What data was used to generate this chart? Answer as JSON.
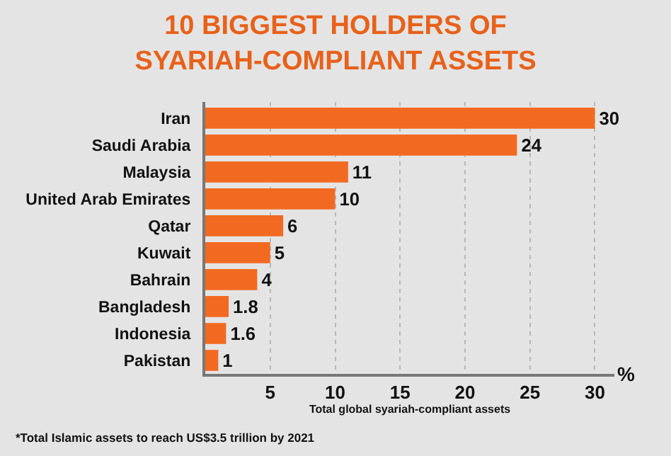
{
  "chart_data": {
    "type": "bar",
    "orientation": "horizontal",
    "title": "10 BIGGEST HOLDERS OF\nSYARIAH-COMPLIANT ASSETS",
    "categories": [
      "Iran",
      "Saudi Arabia",
      "Malaysia",
      "United Arab Emirates",
      "Qatar",
      "Kuwait",
      "Bahrain",
      "Bangladesh",
      "Indonesia",
      "Pakistan"
    ],
    "values": [
      30,
      24,
      11,
      10,
      6,
      5,
      4,
      1.8,
      1.6,
      1
    ],
    "color": "#f26a21",
    "xlim": [
      0,
      31.5
    ],
    "xticks": [
      5,
      10,
      15,
      20,
      25,
      30
    ],
    "xlabel": "Total global syariah-compliant assets",
    "annotations": [
      "%",
      "*Total Islamic assets to reach US$3.5 trillion by 2021"
    ],
    "data_labels": true,
    "grid": "x"
  }
}
